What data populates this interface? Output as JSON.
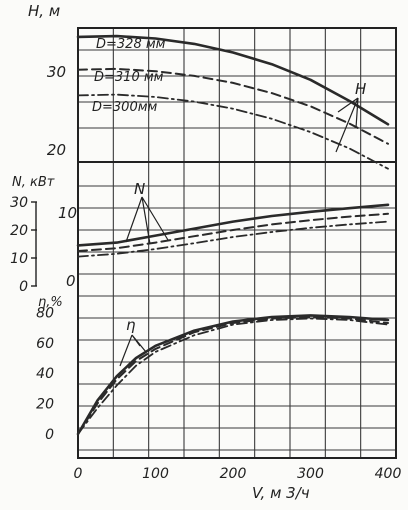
{
  "chart_data": [
    {
      "type": "line",
      "panel": "head",
      "ylabel": "H, м",
      "curve_label": "H",
      "ylim": [
        15,
        36
      ],
      "yticks": [
        20,
        30
      ],
      "xlim": [
        0,
        420
      ],
      "series": [
        {
          "name": "D=328 мм",
          "style": "solid",
          "x": [
            0,
            50,
            100,
            150,
            200,
            250,
            300,
            350,
            400
          ],
          "y": [
            34.5,
            34.6,
            34.3,
            33.6,
            32.5,
            31.0,
            29.0,
            26.3,
            23.3
          ]
        },
        {
          "name": "D=310 мм",
          "style": "dashed",
          "x": [
            0,
            50,
            100,
            150,
            200,
            250,
            300,
            350,
            400
          ],
          "y": [
            30.3,
            30.4,
            30.1,
            29.5,
            28.6,
            27.3,
            25.6,
            23.4,
            20.8
          ]
        },
        {
          "name": "D=300мм",
          "style": "dashdot",
          "x": [
            0,
            50,
            100,
            150,
            200,
            250,
            300,
            350,
            400
          ],
          "y": [
            27.0,
            27.1,
            26.8,
            26.2,
            25.3,
            24.0,
            22.3,
            20.2,
            17.6
          ]
        }
      ]
    },
    {
      "type": "line",
      "panel": "power",
      "ylabel": "N, кВт",
      "curve_label": "N",
      "ylim": [
        0,
        30
      ],
      "yticks": [
        0,
        10,
        20,
        30
      ],
      "extra_tick_labels": [
        "10",
        "0"
      ],
      "series": [
        {
          "name": "D=328 мм",
          "style": "solid",
          "x": [
            0,
            50,
            100,
            150,
            200,
            250,
            300,
            350,
            400
          ],
          "y": [
            14.5,
            15.5,
            18.0,
            20.5,
            23.0,
            25.0,
            26.5,
            27.8,
            29.0
          ]
        },
        {
          "name": "D=310 мм",
          "style": "dashed",
          "x": [
            0,
            50,
            100,
            150,
            200,
            250,
            300,
            350,
            400
          ],
          "y": [
            12.5,
            13.5,
            15.5,
            17.8,
            20.0,
            22.0,
            23.5,
            24.8,
            25.8
          ]
        },
        {
          "name": "D=300мм",
          "style": "dashdot",
          "x": [
            0,
            50,
            100,
            150,
            200,
            250,
            300,
            350,
            400
          ],
          "y": [
            10.5,
            11.5,
            13.2,
            15.3,
            17.5,
            19.3,
            20.8,
            22.0,
            23.0
          ]
        }
      ]
    },
    {
      "type": "line",
      "panel": "efficiency",
      "ylabel": "η,%",
      "curve_label": "η",
      "ylim": [
        0,
        85
      ],
      "yticks": [
        0,
        20,
        40,
        60,
        80
      ],
      "series": [
        {
          "name": "D=328 мм",
          "style": "solid",
          "x": [
            0,
            25,
            50,
            75,
            100,
            150,
            200,
            250,
            300,
            350,
            400
          ],
          "y": [
            0,
            22,
            38,
            50,
            58,
            68,
            74,
            77,
            78,
            77,
            75
          ]
        },
        {
          "name": "D=310 мм",
          "style": "dashed",
          "x": [
            0,
            25,
            50,
            75,
            100,
            150,
            200,
            250,
            300,
            350,
            400
          ],
          "y": [
            0,
            20,
            36,
            48,
            56,
            67,
            73,
            76,
            77,
            76,
            73
          ]
        },
        {
          "name": "D=300мм",
          "style": "dashdot",
          "x": [
            0,
            25,
            50,
            75,
            100,
            150,
            200,
            250,
            300,
            350,
            400
          ],
          "y": [
            0,
            17,
            32,
            45,
            54,
            65,
            72,
            75,
            76,
            75,
            72
          ]
        }
      ]
    }
  ],
  "x_axis": {
    "label": "V, м 3/ч",
    "ticks": [
      0,
      100,
      200,
      300,
      400
    ]
  }
}
